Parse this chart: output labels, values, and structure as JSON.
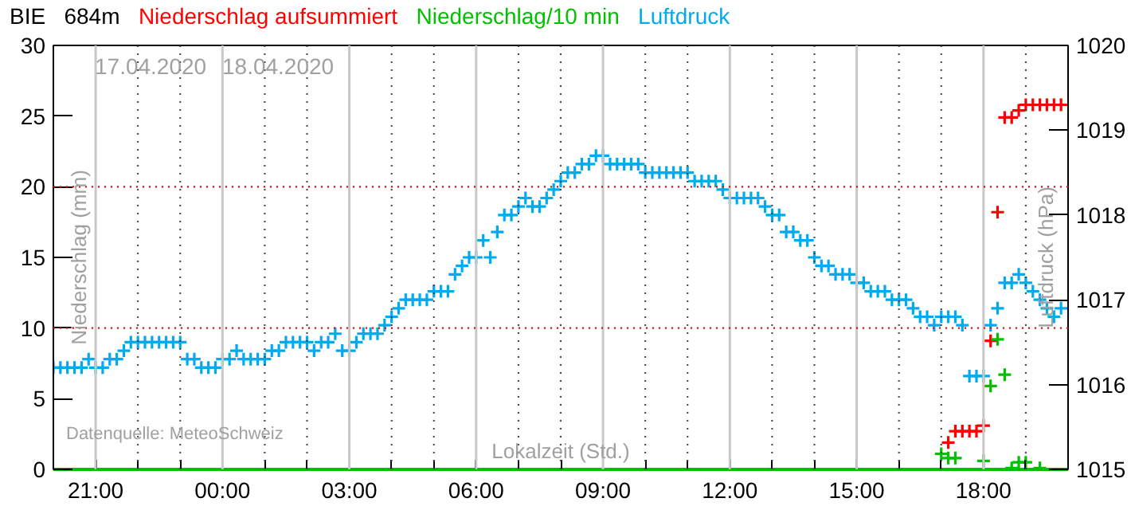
{
  "chart_data": {
    "type": "scatter",
    "title": "BIE   684m",
    "xlabel": "Lokalzeit (Std.)",
    "ylabel": "Niederschlag (mm)",
    "y2label": "Luftdruck (hPa)",
    "annotations": [
      "17.04.2020",
      "18.04.2020",
      "Datenquelle: MeteoSchweiz"
    ],
    "marker": "cross",
    "grid": "x",
    "xlim": [
      "2020-04-17T20:00",
      "2020-04-18T20:00"
    ],
    "xticks": [
      {
        "value": "2020-04-17T21:00",
        "label": "21:00"
      },
      {
        "value": "2020-04-17T22:00",
        "label": null
      },
      {
        "value": "2020-04-17T23:00",
        "label": null
      },
      {
        "value": "2020-04-18T00:00",
        "label": "00:00"
      },
      {
        "value": "2020-04-18T01:00",
        "label": null
      },
      {
        "value": "2020-04-18T02:00",
        "label": null
      },
      {
        "value": "2020-04-18T03:00",
        "label": "03:00"
      },
      {
        "value": "2020-04-18T04:00",
        "label": null
      },
      {
        "value": "2020-04-18T05:00",
        "label": null
      },
      {
        "value": "2020-04-18T06:00",
        "label": "06:00"
      },
      {
        "value": "2020-04-18T07:00",
        "label": null
      },
      {
        "value": "2020-04-18T08:00",
        "label": null
      },
      {
        "value": "2020-04-18T09:00",
        "label": "09:00"
      },
      {
        "value": "2020-04-18T10:00",
        "label": null
      },
      {
        "value": "2020-04-18T11:00",
        "label": null
      },
      {
        "value": "2020-04-18T12:00",
        "label": "12:00"
      },
      {
        "value": "2020-04-18T13:00",
        "label": null
      },
      {
        "value": "2020-04-18T14:00",
        "label": null
      },
      {
        "value": "2020-04-18T15:00",
        "label": "15:00"
      },
      {
        "value": "2020-04-18T16:00",
        "label": null
      },
      {
        "value": "2020-04-18T17:00",
        "label": null
      },
      {
        "value": "2020-04-18T18:00",
        "label": "18:00"
      },
      {
        "value": "2020-04-18T19:00",
        "label": null
      }
    ],
    "ylim": [
      0,
      30
    ],
    "yticks": [
      0,
      5,
      10,
      15,
      20,
      25,
      30
    ],
    "y2lim": [
      1015,
      1020
    ],
    "y2ticks": [
      1015,
      1016,
      1017,
      1018,
      1019,
      1020
    ],
    "ref_lines": [
      {
        "axis": "y",
        "value": 10,
        "color": "#ff0000",
        "line_style": "dotted"
      },
      {
        "axis": "y",
        "value": 20,
        "color": "#ff0000",
        "line_style": "dotted"
      }
    ],
    "series": [
      {
        "name": "Niederschlag aufsummiert",
        "color": "#ff0000",
        "x": [
          "2020-04-18T17:10",
          "2020-04-18T17:20",
          "2020-04-18T17:30",
          "2020-04-18T17:40",
          "2020-04-18T17:50",
          "2020-04-18T18:00",
          "2020-04-18T18:10",
          "2020-04-18T18:20",
          "2020-04-18T18:30",
          "2020-04-18T18:40",
          "2020-04-18T18:50",
          "2020-04-18T19:00",
          "2020-04-18T19:10",
          "2020-04-18T19:20",
          "2020-04-18T19:30",
          "2020-04-18T19:40",
          "2020-04-18T19:50"
        ],
        "values": [
          1.9,
          2.7,
          2.7,
          2.7,
          2.7,
          3.1,
          9.1,
          18.2,
          24.9,
          24.9,
          25.4,
          25.8,
          25.8,
          25.8,
          25.8,
          25.8,
          25.8
        ]
      },
      {
        "name": "Niederschlag/10 min",
        "color": "#00c000",
        "x": [
          "2020-04-18T17:00",
          "2020-04-18T17:10",
          "2020-04-18T17:20",
          "2020-04-18T18:00",
          "2020-04-18T18:10",
          "2020-04-18T18:20",
          "2020-04-18T18:30",
          "2020-04-18T18:40",
          "2020-04-18T18:50",
          "2020-04-18T19:00",
          "2020-04-18T19:20"
        ],
        "values": [
          1.1,
          0.8,
          0.8,
          0.6,
          5.9,
          9.2,
          6.7,
          0.1,
          0.5,
          0.5,
          0.1
        ]
      },
      {
        "name": "Luftdruck",
        "color": "#00aaee",
        "axis": "y2",
        "x": [
          "2020-04-17T20:00",
          "2020-04-17T20:10",
          "2020-04-17T20:20",
          "2020-04-17T20:30",
          "2020-04-17T20:40",
          "2020-04-17T20:50",
          "2020-04-17T21:00",
          "2020-04-17T21:10",
          "2020-04-17T21:20",
          "2020-04-17T21:30",
          "2020-04-17T21:40",
          "2020-04-17T21:50",
          "2020-04-17T22:00",
          "2020-04-17T22:10",
          "2020-04-17T22:20",
          "2020-04-17T22:30",
          "2020-04-17T22:40",
          "2020-04-17T22:50",
          "2020-04-17T23:00",
          "2020-04-17T23:10",
          "2020-04-17T23:20",
          "2020-04-17T23:30",
          "2020-04-17T23:40",
          "2020-04-17T23:50",
          "2020-04-18T00:00",
          "2020-04-18T00:10",
          "2020-04-18T00:20",
          "2020-04-18T00:30",
          "2020-04-18T00:40",
          "2020-04-18T00:50",
          "2020-04-18T01:00",
          "2020-04-18T01:10",
          "2020-04-18T01:20",
          "2020-04-18T01:30",
          "2020-04-18T01:40",
          "2020-04-18T01:50",
          "2020-04-18T02:00",
          "2020-04-18T02:10",
          "2020-04-18T02:20",
          "2020-04-18T02:30",
          "2020-04-18T02:40",
          "2020-04-18T02:50",
          "2020-04-18T03:00",
          "2020-04-18T03:10",
          "2020-04-18T03:20",
          "2020-04-18T03:30",
          "2020-04-18T03:40",
          "2020-04-18T03:50",
          "2020-04-18T04:00",
          "2020-04-18T04:10",
          "2020-04-18T04:20",
          "2020-04-18T04:30",
          "2020-04-18T04:40",
          "2020-04-18T04:50",
          "2020-04-18T05:00",
          "2020-04-18T05:10",
          "2020-04-18T05:20",
          "2020-04-18T05:30",
          "2020-04-18T05:40",
          "2020-04-18T05:50",
          "2020-04-18T06:00",
          "2020-04-18T06:10",
          "2020-04-18T06:20",
          "2020-04-18T06:30",
          "2020-04-18T06:40",
          "2020-04-18T06:50",
          "2020-04-18T07:00",
          "2020-04-18T07:10",
          "2020-04-18T07:20",
          "2020-04-18T07:30",
          "2020-04-18T07:40",
          "2020-04-18T07:50",
          "2020-04-18T08:00",
          "2020-04-18T08:10",
          "2020-04-18T08:20",
          "2020-04-18T08:30",
          "2020-04-18T08:40",
          "2020-04-18T08:50",
          "2020-04-18T09:00",
          "2020-04-18T09:10",
          "2020-04-18T09:20",
          "2020-04-18T09:30",
          "2020-04-18T09:40",
          "2020-04-18T09:50",
          "2020-04-18T10:00",
          "2020-04-18T10:10",
          "2020-04-18T10:20",
          "2020-04-18T10:30",
          "2020-04-18T10:40",
          "2020-04-18T10:50",
          "2020-04-18T11:00",
          "2020-04-18T11:10",
          "2020-04-18T11:20",
          "2020-04-18T11:30",
          "2020-04-18T11:40",
          "2020-04-18T11:50",
          "2020-04-18T12:00",
          "2020-04-18T12:10",
          "2020-04-18T12:20",
          "2020-04-18T12:30",
          "2020-04-18T12:40",
          "2020-04-18T12:50",
          "2020-04-18T13:00",
          "2020-04-18T13:10",
          "2020-04-18T13:20",
          "2020-04-18T13:30",
          "2020-04-18T13:40",
          "2020-04-18T13:50",
          "2020-04-18T14:00",
          "2020-04-18T14:10",
          "2020-04-18T14:20",
          "2020-04-18T14:30",
          "2020-04-18T14:40",
          "2020-04-18T14:50",
          "2020-04-18T15:00",
          "2020-04-18T15:10",
          "2020-04-18T15:20",
          "2020-04-18T15:30",
          "2020-04-18T15:40",
          "2020-04-18T15:50",
          "2020-04-18T16:00",
          "2020-04-18T16:10",
          "2020-04-18T16:20",
          "2020-04-18T16:30",
          "2020-04-18T16:40",
          "2020-04-18T16:50",
          "2020-04-18T17:00",
          "2020-04-18T17:10",
          "2020-04-18T17:20",
          "2020-04-18T17:30",
          "2020-04-18T17:40",
          "2020-04-18T17:50",
          "2020-04-18T18:00",
          "2020-04-18T18:10",
          "2020-04-18T18:20",
          "2020-04-18T18:30",
          "2020-04-18T18:40",
          "2020-04-18T18:50",
          "2020-04-18T19:00",
          "2020-04-18T19:10",
          "2020-04-18T19:20",
          "2020-04-18T19:30",
          "2020-04-18T19:40",
          "2020-04-18T19:50"
        ],
        "values": [
          1016.2,
          1016.2,
          1016.2,
          1016.2,
          1016.2,
          1016.3,
          1016.2,
          1016.2,
          1016.3,
          1016.3,
          1016.4,
          1016.5,
          1016.5,
          1016.5,
          1016.5,
          1016.5,
          1016.5,
          1016.5,
          1016.5,
          1016.3,
          1016.3,
          1016.2,
          1016.2,
          1016.2,
          1016.3,
          1016.3,
          1016.4,
          1016.3,
          1016.3,
          1016.3,
          1016.3,
          1016.4,
          1016.4,
          1016.5,
          1016.5,
          1016.5,
          1016.5,
          1016.4,
          1016.5,
          1016.5,
          1016.6,
          1016.4,
          1016.4,
          1016.5,
          1016.6,
          1016.6,
          1016.6,
          1016.7,
          1016.8,
          1016.9,
          1017.0,
          1017.0,
          1017.0,
          1017.0,
          1017.1,
          1017.1,
          1017.1,
          1017.3,
          1017.4,
          1017.5,
          1017.5,
          1017.7,
          1017.5,
          1017.8,
          1018.0,
          1018.0,
          1018.1,
          1018.2,
          1018.1,
          1018.1,
          1018.2,
          1018.3,
          1018.4,
          1018.5,
          1018.5,
          1018.6,
          1018.6,
          1018.7,
          1018.7,
          1018.6,
          1018.6,
          1018.6,
          1018.6,
          1018.6,
          1018.5,
          1018.5,
          1018.5,
          1018.5,
          1018.5,
          1018.5,
          1018.5,
          1018.4,
          1018.4,
          1018.4,
          1018.4,
          1018.3,
          1018.2,
          1018.2,
          1018.2,
          1018.2,
          1018.2,
          1018.1,
          1018.0,
          1018.0,
          1017.8,
          1017.8,
          1017.7,
          1017.7,
          1017.5,
          1017.4,
          1017.4,
          1017.3,
          1017.3,
          1017.3,
          1017.2,
          1017.2,
          1017.1,
          1017.1,
          1017.1,
          1017.0,
          1017.0,
          1017.0,
          1016.9,
          1016.8,
          1016.8,
          1016.7,
          1016.8,
          1016.8,
          1016.8,
          1016.7,
          1016.1,
          1016.1,
          1016.1,
          1016.7,
          1016.9,
          1017.2,
          1017.2,
          1017.3,
          1017.2,
          1017.1,
          1017.0,
          1016.9,
          1016.8,
          1016.9
        ]
      }
    ]
  }
}
